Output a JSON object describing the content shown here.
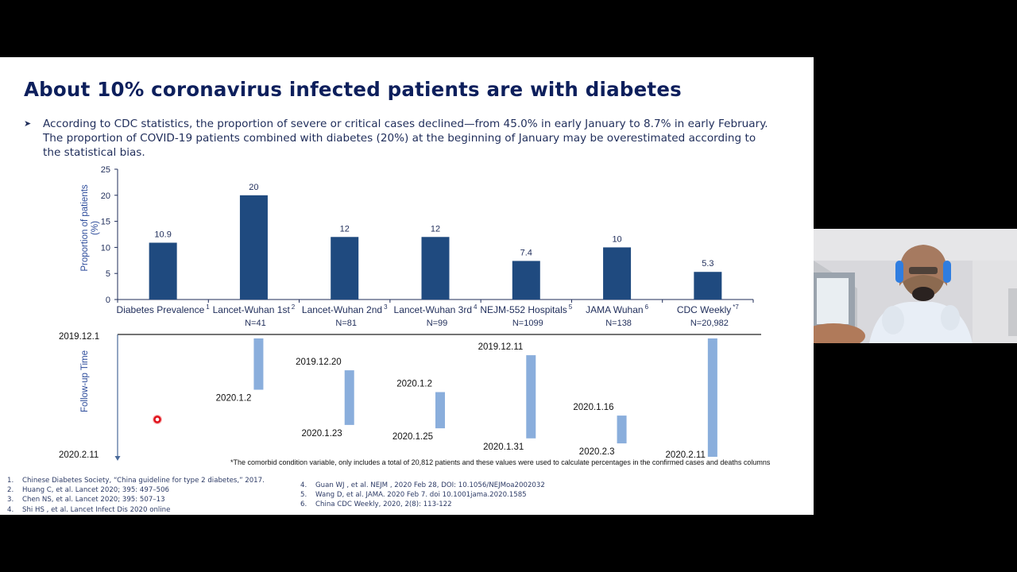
{
  "slide": {
    "title": "About 10% coronavirus infected patients are with diabetes",
    "bullet_icon": "arrow-bullet-icon",
    "bullet": "According to CDC statistics, the proportion of severe or critical cases declined—from 45.0% in early January to  8.7% in early February. The proportion of COVID-19 patients combined with diabetes (20%) at the beginning of January may be overestimated according to the statistical bias.",
    "footnote": "*The comorbid condition variable, only includes a total of 20,812 patients and these values were used to calculate percentages in the confirmed cases and deaths columns",
    "references_left": [
      {
        "n": "1.",
        "text": "Chinese Diabetes Society, “China guideline for type 2 diabetes,” 2017."
      },
      {
        "n": "2.",
        "text": "Huang C, et al. Lancet 2020; 395: 497–506"
      },
      {
        "n": "3.",
        "text": "Chen NS, et al. Lancet 2020; 395: 507–13"
      },
      {
        "n": "4.",
        "text": "Shi HS , et al. Lancet Infect Dis 2020 online"
      }
    ],
    "references_right": [
      {
        "n": "4.",
        "text": "Guan WJ , et al. NEJM , 2020 Feb 28, DOI: 10.1056/NEJMoa2002032"
      },
      {
        "n": "5.",
        "text": "Wang D, et al. JAMA. 2020 Feb 7. doi 10.1001jama.2020.1585"
      },
      {
        "n": "6.",
        "text": "China CDC Weekly,  2020, 2(8): 113-122"
      }
    ]
  },
  "colors": {
    "title": "#0d1f5c",
    "bar": "#1f4a7f",
    "timeline_bar": "#8aaedc",
    "text": "#1f2d5a"
  },
  "chart_data": [
    {
      "type": "bar",
      "title": "",
      "xlabel": "",
      "ylabel": "Proportion of patients (%)",
      "ylim": [
        0,
        25
      ],
      "yticks": [
        0,
        5,
        10,
        15,
        20,
        25
      ],
      "grid": false,
      "categories": [
        {
          "label": "Diabetes Prevalence",
          "sup": "1",
          "n": ""
        },
        {
          "label": "Lancet-Wuhan 1st",
          "sup": "2",
          "n": "N=41"
        },
        {
          "label": "Lancet-Wuhan 2nd",
          "sup": "3",
          "n": "N=81"
        },
        {
          "label": "Lancet-Wuhan 3rd",
          "sup": "4",
          "n": "N=99"
        },
        {
          "label": "NEJM-552 Hospitals",
          "sup": "5",
          "n": "N=1099"
        },
        {
          "label": "JAMA Wuhan",
          "sup": "6",
          "n": "N=138"
        },
        {
          "label": "CDC Weekly",
          "sup": "*7",
          "n": "N=20,982"
        }
      ],
      "values": [
        10.9,
        20,
        12,
        12,
        7.4,
        10,
        5.3
      ],
      "value_labels": [
        "10.9",
        "20",
        "12",
        "12",
        "7.4",
        "10",
        "5.3"
      ]
    },
    {
      "type": "timeline",
      "ylabel": "Follow-up Time",
      "axis_start": "2019.12.1",
      "axis_end": "2020.2.11",
      "intervals": [
        null,
        {
          "start": "2019.12.1",
          "end": "2020.1.2",
          "start_label": "",
          "end_label": "2020.1.2"
        },
        {
          "start": "2019.12.20",
          "end": "2020.1.23",
          "start_label": "2019.12.20",
          "end_label": "2020.1.23"
        },
        {
          "start": "2020.1.2",
          "end": "2020.1.25",
          "start_label": "2020.1.2",
          "end_label": "2020.1.25"
        },
        {
          "start": "2019.12.11",
          "end": "2020.1.31",
          "start_label": "2019.12.11",
          "end_label": "2020.1.31"
        },
        {
          "start": "2020.1.16",
          "end": "2020.2.3",
          "start_label": "2020.1.16",
          "end_label": "2020.2.3"
        },
        {
          "start": "2019.12.1",
          "end": "2020.2.11",
          "start_label": "",
          "end_label": "2020.2.11"
        }
      ]
    }
  ]
}
